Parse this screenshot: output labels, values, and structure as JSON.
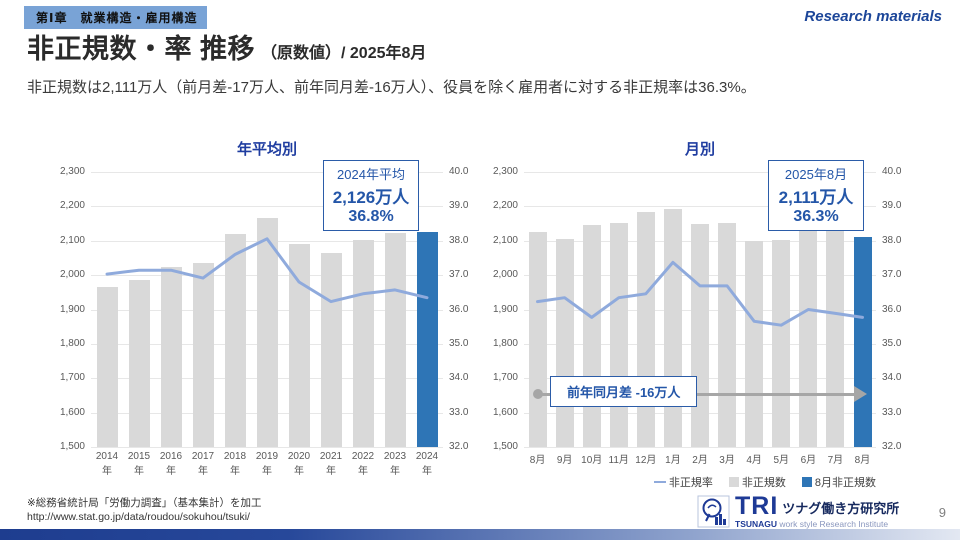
{
  "header": {
    "chapter_tag": "第Ⅰ章　就業構造・雇用構造",
    "watermark": "Research materials",
    "title_main": "非正規数・率 推移",
    "title_sub": "（原数値）/ 2025年8月",
    "summary": "非正規数は2,111万人（前月差-17万人、前年同月差-16万人）、役員を除く雇用者に対する非正規率は36.3%。"
  },
  "chart_data": [
    {
      "type": "bar",
      "title": "年平均別",
      "categories": [
        "2014年",
        "2015年",
        "2016年",
        "2017年",
        "2018年",
        "2019年",
        "2020年",
        "2021年",
        "2022年",
        "2023年",
        "2024年"
      ],
      "series": [
        {
          "name": "非正規数",
          "type": "bar",
          "unit": "万人",
          "values": [
            1967,
            1986,
            2023,
            2036,
            2120,
            2165,
            2090,
            2064,
            2101,
            2124,
            2126
          ]
        },
        {
          "name": "非正規率",
          "type": "line",
          "unit": "%",
          "values": [
            37.4,
            37.5,
            37.5,
            37.3,
            37.9,
            38.3,
            37.2,
            36.7,
            36.9,
            37.0,
            36.8
          ]
        }
      ],
      "highlight_last_bar": true,
      "y_left": {
        "min": 1500,
        "max": 2300,
        "step": 100
      },
      "y_right": {
        "min": 33.0,
        "max": 40.0,
        "step": 1.0
      },
      "grid": true,
      "callout": {
        "line1": "2024年平均",
        "line2": "2,126万人",
        "line3": "36.8%"
      }
    },
    {
      "type": "bar",
      "title": "月別",
      "categories": [
        "8月",
        "9月",
        "10月",
        "11月",
        "12月",
        "1月",
        "2月",
        "3月",
        "4月",
        "5月",
        "6月",
        "7月",
        "8月"
      ],
      "series": [
        {
          "name": "非正規数",
          "type": "bar",
          "unit": "万人",
          "values": [
            2127,
            2105,
            2147,
            2153,
            2185,
            2192,
            2148,
            2152,
            2099,
            2101,
            2135,
            2128,
            2111
          ]
        },
        {
          "name": "非正規率",
          "type": "line",
          "unit": "%",
          "values": [
            36.7,
            36.8,
            36.3,
            36.8,
            36.9,
            37.7,
            37.1,
            37.1,
            36.2,
            36.1,
            36.5,
            36.4,
            36.3
          ]
        }
      ],
      "highlight_last_bar": true,
      "y_left": {
        "min": 1500,
        "max": 2300,
        "step": 100
      },
      "y_right": {
        "min": 33.0,
        "max": 40.0,
        "step": 1.0
      },
      "grid": true,
      "callout": {
        "line1": "2025年8月",
        "line2": "2,111万人",
        "line3": "36.3%"
      },
      "annotation": {
        "label": "前年同月差  -16万人"
      }
    }
  ],
  "legend": {
    "rate": "非正規率",
    "count": "非正規数",
    "highlight": "8月非正規数"
  },
  "footer": {
    "source_line1": "※総務省統計局「労働力調査」（基本集計）を加工",
    "source_line2": "http://www.stat.go.jp/data/roudou/sokuhou/tsuki/",
    "page_number": "9"
  },
  "logo": {
    "tri": "TRI",
    "name_jp": "ツナグ働き方研究所",
    "en_bold": "TSUNAGU",
    "en_rest": " work style Research Institute"
  },
  "colors": {
    "bar_gray": "#D9D9D9",
    "bar_highlight": "#2E75B6",
    "line": "#8FAADC",
    "accent_blue": "#2456A8",
    "chip_bg": "#79A3D6"
  }
}
